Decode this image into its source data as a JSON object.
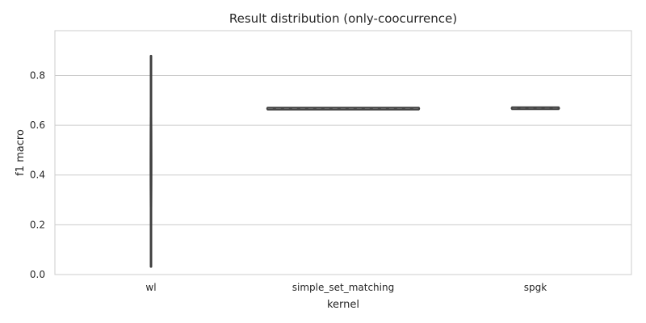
{
  "chart_data": {
    "type": "violin",
    "title": "Result distribution (only-coocurrence)",
    "xlabel": "kernel",
    "ylabel": "f1 macro",
    "ylim": [
      0,
      0.98
    ],
    "yticks": [
      0.0,
      0.2,
      0.4,
      0.6,
      0.8
    ],
    "ytick_labels": [
      "0.0",
      "0.2",
      "0.4",
      "0.6",
      "0.8"
    ],
    "grid": "horizontal",
    "categories": [
      "wl",
      "simple_set_matching",
      "spgk"
    ],
    "distributions": [
      {
        "category": "wl",
        "min": 0.032,
        "max": 0.878,
        "median": 0.45,
        "relative_width": 0.02
      },
      {
        "category": "simple_set_matching",
        "min": 0.664,
        "max": 0.67,
        "median": 0.667,
        "relative_width": 1.0
      },
      {
        "category": "spgk",
        "min": 0.664,
        "max": 0.673,
        "median": 0.668,
        "relative_width": 0.32
      }
    ],
    "colors": {
      "violin_fill": "#4a4a4a",
      "violin_edge": "#3f3f3f",
      "grid": "#cccccc",
      "frame": "#cccccc"
    }
  }
}
